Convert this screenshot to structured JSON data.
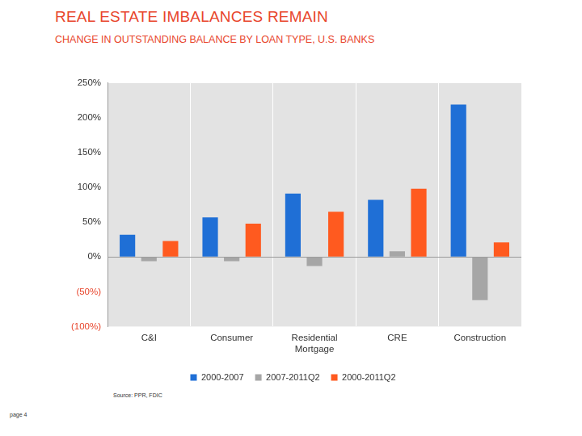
{
  "chart_data": {
    "type": "bar",
    "title": "REAL ESTATE IMBALANCES REMAIN",
    "subtitle": "CHANGE IN OUTSTANDING BALANCE BY LOAN TYPE, U.S. BANKS",
    "source": "Source: PPR, FDIC",
    "page": "page 4",
    "categories": [
      "C&I",
      "Consumer",
      "Residential Mortgage",
      "CRE",
      "Construction"
    ],
    "series": [
      {
        "name": "2000-2007",
        "color": "#1f6fd6",
        "values": [
          32,
          57,
          91,
          82,
          219
        ]
      },
      {
        "name": "2007-2011Q2",
        "color": "#a6a6a6",
        "values": [
          -6,
          -6,
          -13,
          8,
          -62
        ]
      },
      {
        "name": "2000-2011Q2",
        "color": "#ff5a1f",
        "values": [
          23,
          48,
          65,
          98,
          21
        ]
      }
    ],
    "ylim": [
      -100,
      250
    ],
    "yticks": [
      {
        "value": -100,
        "label": "(100%)"
      },
      {
        "value": -50,
        "label": "(50%)"
      },
      {
        "value": 0,
        "label": "0%"
      },
      {
        "value": 50,
        "label": "50%"
      },
      {
        "value": 100,
        "label": "100%"
      },
      {
        "value": 150,
        "label": "150%"
      },
      {
        "value": 200,
        "label": "200%"
      },
      {
        "value": 250,
        "label": "250%"
      }
    ],
    "grid": true,
    "legend": "bottom"
  }
}
